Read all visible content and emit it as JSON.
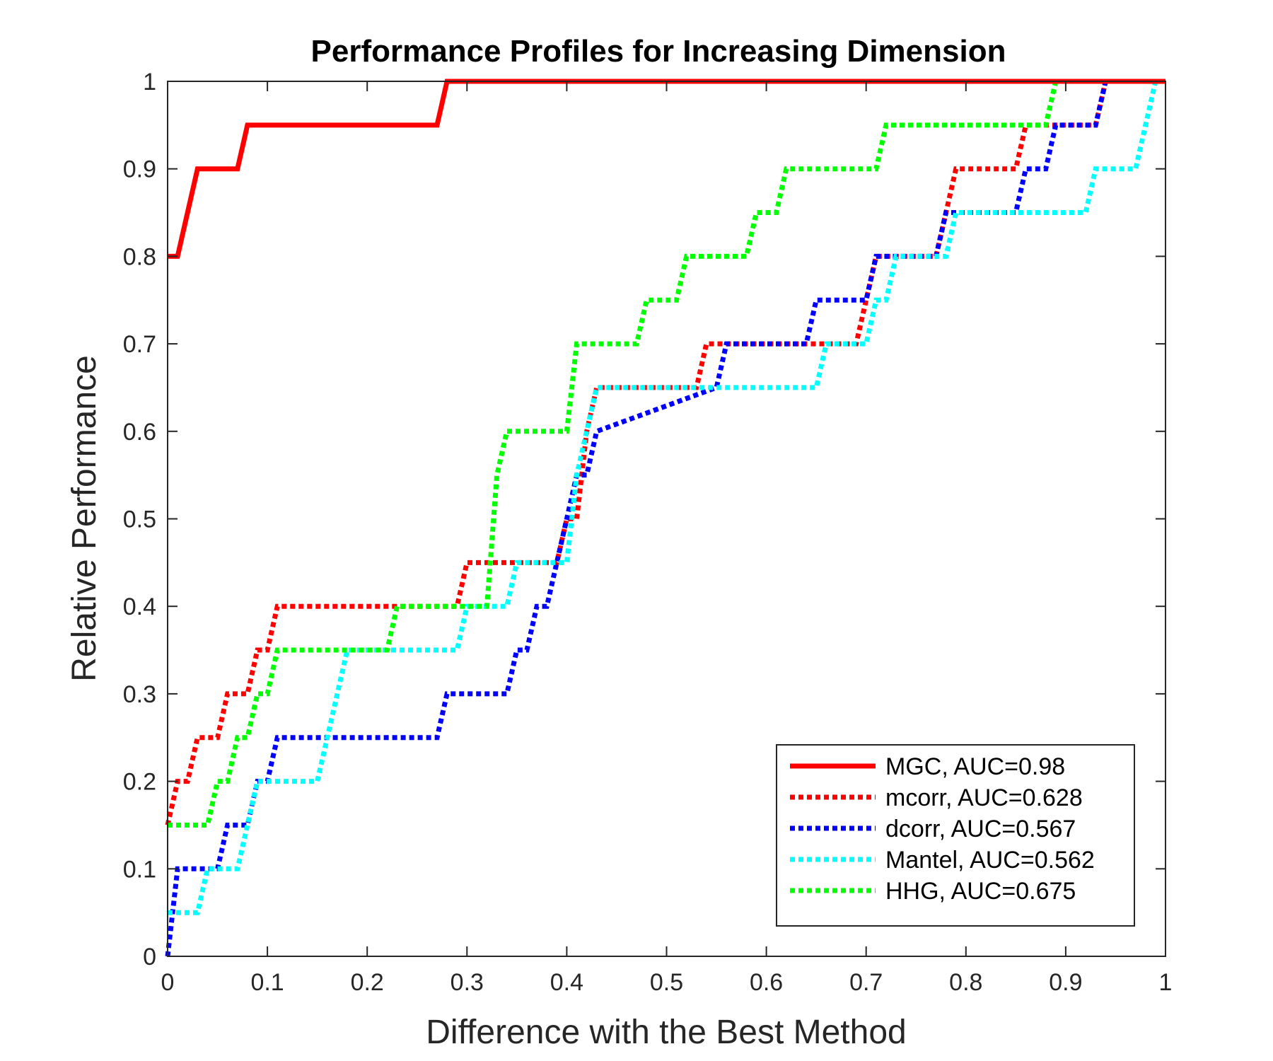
{
  "chart_data": {
    "type": "line",
    "title": "Performance Profiles for Increasing Dimension",
    "xlabel": "Difference with the Best Method",
    "ylabel": "Relative Performance",
    "xlim": [
      0,
      1
    ],
    "ylim": [
      0,
      1
    ],
    "xticks": [
      0,
      0.1,
      0.2,
      0.3,
      0.4,
      0.5,
      0.6,
      0.7,
      0.8,
      0.9,
      1
    ],
    "yticks": [
      0,
      0.1,
      0.2,
      0.3,
      0.4,
      0.5,
      0.6,
      0.7,
      0.8,
      0.9,
      1
    ],
    "xtick_labels": [
      "0",
      "0.1",
      "0.2",
      "0.3",
      "0.4",
      "0.5",
      "0.6",
      "0.7",
      "0.8",
      "0.9",
      "1"
    ],
    "ytick_labels": [
      "0",
      "0.1",
      "0.2",
      "0.3",
      "0.4",
      "0.5",
      "0.6",
      "0.7",
      "0.8",
      "0.9",
      "1"
    ],
    "grid": false,
    "legend_position": "bottom-right",
    "series": [
      {
        "name": "MGC, AUC=0.98",
        "color": "#ff0000",
        "style": "solid",
        "x": [
          0,
          0.01,
          0.03,
          0.07,
          0.08,
          0.27,
          0.28,
          1.0
        ],
        "y": [
          0.8,
          0.8,
          0.9,
          0.9,
          0.95,
          0.95,
          1.0,
          1.0
        ]
      },
      {
        "name": "mcorr, AUC=0.628",
        "color": "#ff0000",
        "style": "dotted",
        "x": [
          0,
          0.01,
          0.02,
          0.03,
          0.05,
          0.06,
          0.08,
          0.09,
          0.1,
          0.11,
          0.29,
          0.3,
          0.37,
          0.38,
          0.39,
          0.4,
          0.41,
          0.42,
          0.43,
          0.53,
          0.54,
          0.69,
          0.7,
          0.71,
          0.77,
          0.78,
          0.79,
          0.85,
          0.86,
          0.93,
          0.94,
          1.0
        ],
        "y": [
          0.15,
          0.2,
          0.2,
          0.25,
          0.25,
          0.3,
          0.3,
          0.35,
          0.35,
          0.4,
          0.4,
          0.45,
          0.45,
          0.45,
          0.45,
          0.5,
          0.5,
          0.6,
          0.65,
          0.65,
          0.7,
          0.7,
          0.75,
          0.8,
          0.8,
          0.85,
          0.9,
          0.9,
          0.95,
          0.95,
          1.0,
          1.0
        ]
      },
      {
        "name": "dcorr, AUC=0.567",
        "color": "#0000ff",
        "style": "dotted",
        "x": [
          0,
          0.01,
          0.04,
          0.05,
          0.06,
          0.08,
          0.09,
          0.1,
          0.11,
          0.12,
          0.27,
          0.28,
          0.34,
          0.35,
          0.36,
          0.37,
          0.38,
          0.39,
          0.4,
          0.41,
          0.42,
          0.43,
          0.55,
          0.56,
          0.64,
          0.65,
          0.7,
          0.71,
          0.77,
          0.78,
          0.85,
          0.86,
          0.88,
          0.89,
          0.93,
          0.94,
          1.0
        ],
        "y": [
          0,
          0.1,
          0.1,
          0.1,
          0.15,
          0.15,
          0.2,
          0.2,
          0.25,
          0.25,
          0.25,
          0.3,
          0.3,
          0.35,
          0.35,
          0.4,
          0.4,
          0.45,
          0.5,
          0.55,
          0.55,
          0.6,
          0.65,
          0.7,
          0.7,
          0.75,
          0.75,
          0.8,
          0.8,
          0.85,
          0.85,
          0.9,
          0.9,
          0.95,
          0.95,
          1.0,
          1.0
        ]
      },
      {
        "name": "Mantel, AUC=0.562",
        "color": "#00ffff",
        "style": "dotted",
        "x": [
          0,
          0.03,
          0.04,
          0.05,
          0.07,
          0.08,
          0.09,
          0.15,
          0.16,
          0.17,
          0.18,
          0.29,
          0.3,
          0.32,
          0.34,
          0.35,
          0.37,
          0.38,
          0.4,
          0.41,
          0.42,
          0.43,
          0.65,
          0.66,
          0.68,
          0.7,
          0.71,
          0.72,
          0.73,
          0.78,
          0.79,
          0.92,
          0.93,
          0.96,
          0.97,
          0.98,
          0.99,
          1.0
        ],
        "y": [
          0.05,
          0.05,
          0.1,
          0.1,
          0.1,
          0.15,
          0.2,
          0.2,
          0.25,
          0.3,
          0.35,
          0.35,
          0.4,
          0.4,
          0.4,
          0.45,
          0.45,
          0.45,
          0.45,
          0.55,
          0.6,
          0.65,
          0.65,
          0.7,
          0.7,
          0.7,
          0.75,
          0.75,
          0.8,
          0.8,
          0.85,
          0.85,
          0.9,
          0.9,
          0.9,
          0.95,
          1.0,
          1.0
        ]
      },
      {
        "name": "HHG, AUC=0.675",
        "color": "#00ff00",
        "style": "dotted",
        "x": [
          0,
          0.04,
          0.05,
          0.06,
          0.07,
          0.08,
          0.09,
          0.1,
          0.11,
          0.12,
          0.22,
          0.23,
          0.31,
          0.32,
          0.33,
          0.34,
          0.35,
          0.4,
          0.41,
          0.42,
          0.47,
          0.48,
          0.51,
          0.52,
          0.58,
          0.59,
          0.61,
          0.62,
          0.71,
          0.72,
          0.88,
          0.89,
          1.0
        ],
        "y": [
          0.15,
          0.15,
          0.2,
          0.2,
          0.25,
          0.25,
          0.3,
          0.3,
          0.35,
          0.35,
          0.35,
          0.4,
          0.4,
          0.4,
          0.55,
          0.6,
          0.6,
          0.6,
          0.7,
          0.7,
          0.7,
          0.75,
          0.75,
          0.8,
          0.8,
          0.85,
          0.85,
          0.9,
          0.9,
          0.95,
          0.95,
          1.0,
          1.0
        ]
      }
    ]
  }
}
